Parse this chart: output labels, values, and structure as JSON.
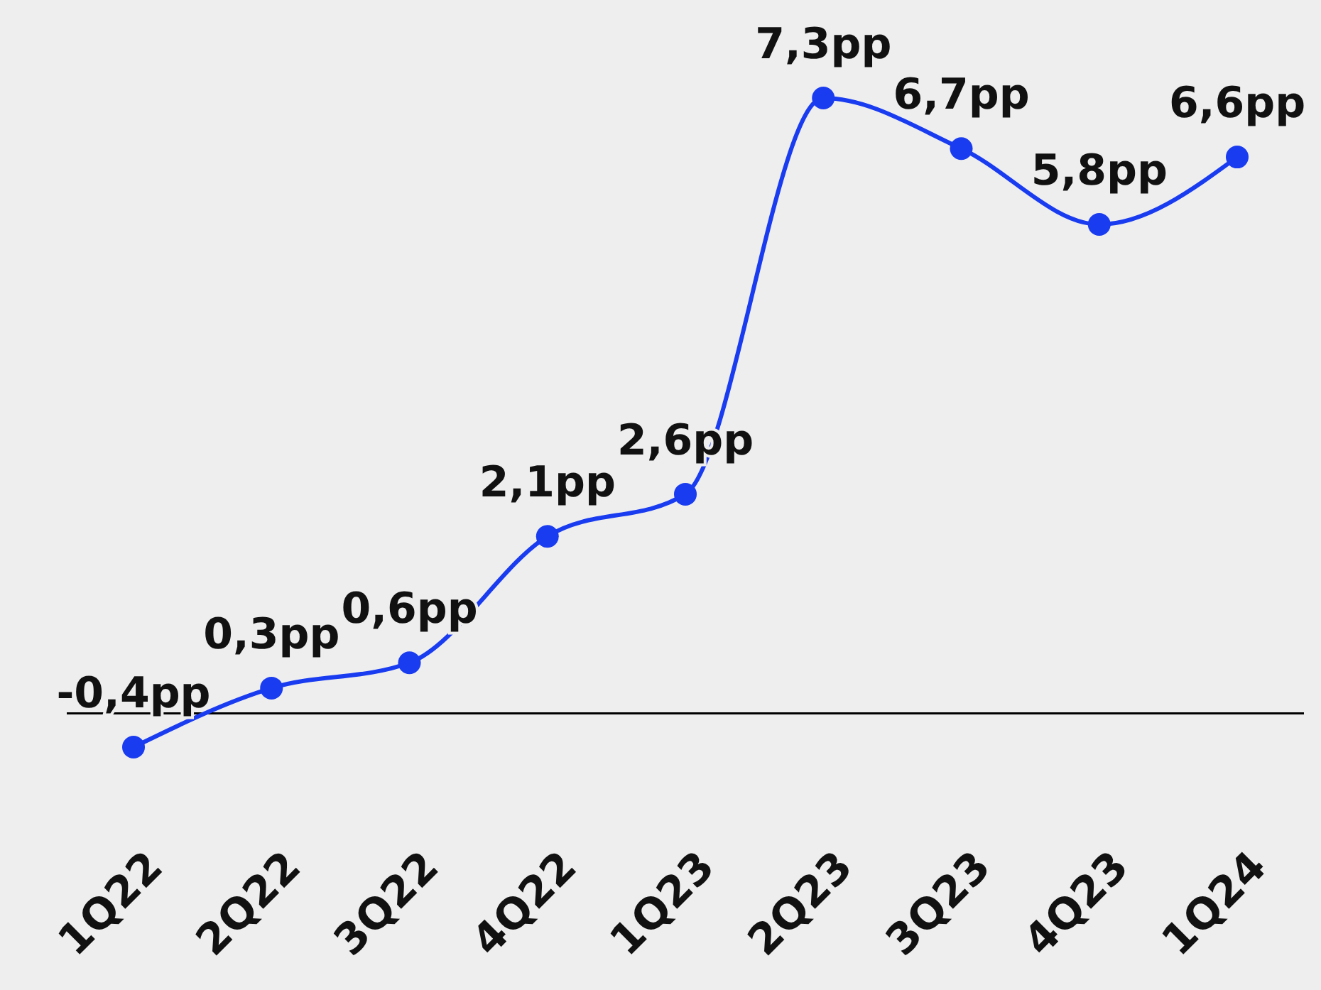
{
  "chart_data": {
    "type": "line",
    "categories": [
      "1Q22",
      "2Q22",
      "3Q22",
      "4Q22",
      "1Q23",
      "2Q23",
      "3Q23",
      "4Q23",
      "1Q24"
    ],
    "series": [
      {
        "color": "#1a3cf0",
        "values": [
          -0.4,
          0.3,
          0.6,
          2.1,
          2.6,
          7.3,
          6.7,
          5.8,
          6.6
        ],
        "value_labels": [
          "-0,4pp",
          "0,3pp",
          "0,6pp",
          "2,1pp",
          "2,6pp",
          "7,3pp",
          "6,7pp",
          "5,8pp",
          "6,6pp"
        ]
      }
    ],
    "tick_labels": "x",
    "marker": "circle",
    "line_style": "solid",
    "ref_lines": [
      {
        "axis": "y",
        "value": 0,
        "color": "#000000"
      }
    ]
  }
}
